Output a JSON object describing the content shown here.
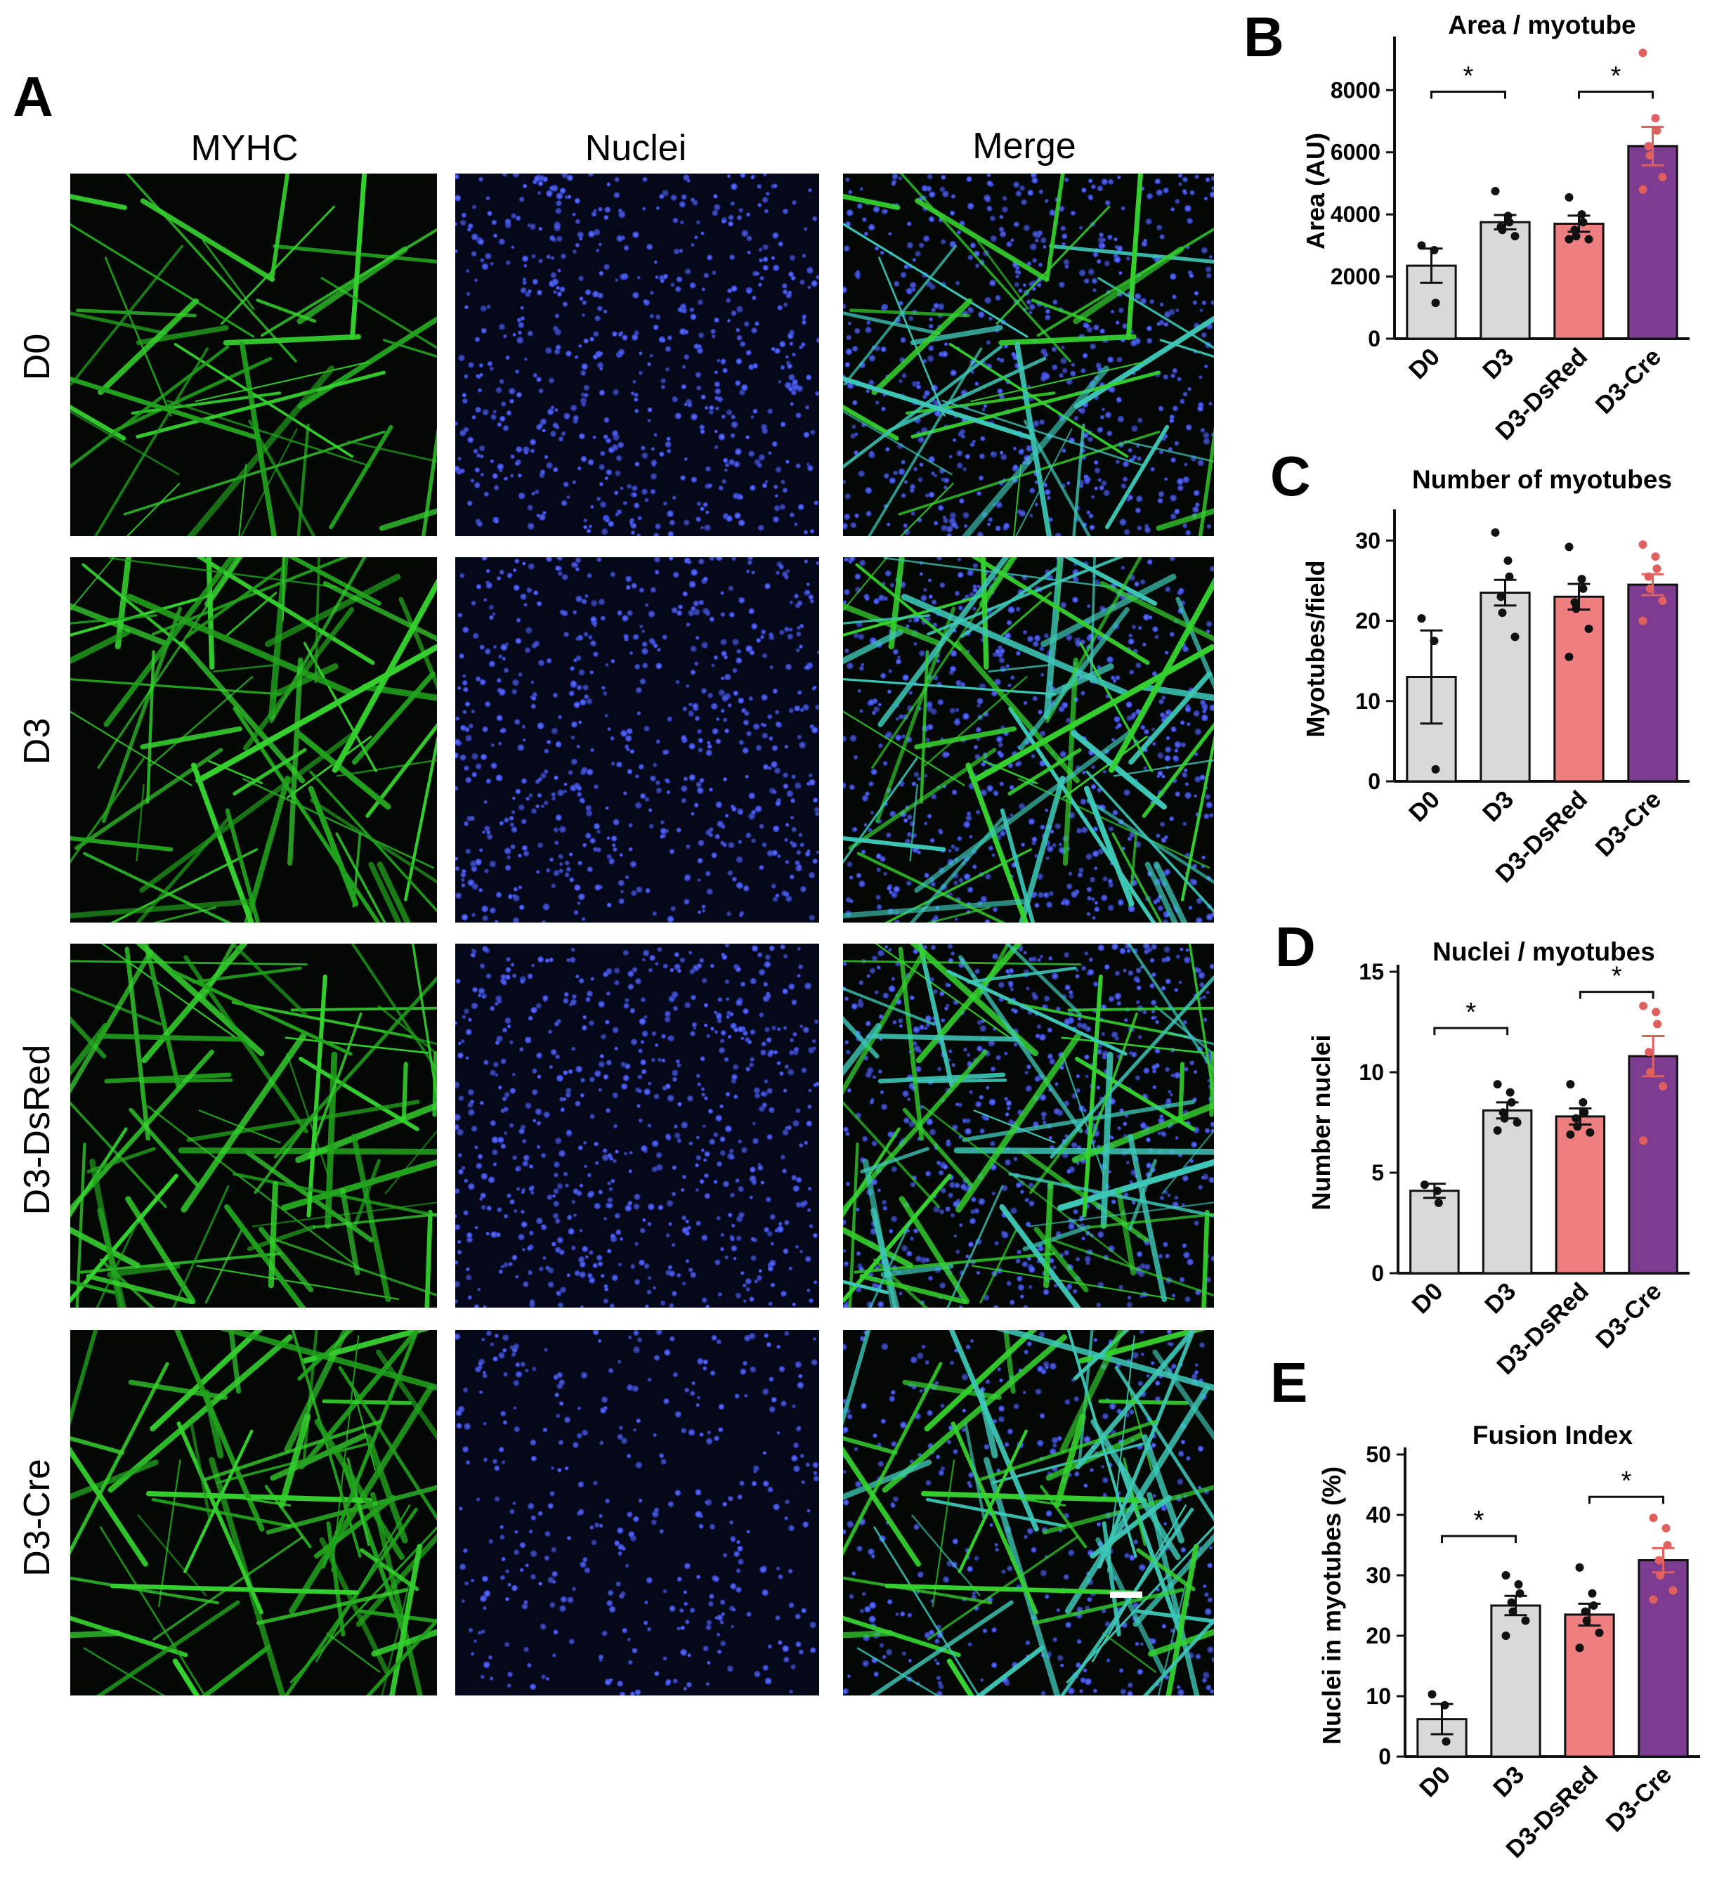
{
  "panel_letters": [
    "A",
    "B",
    "C",
    "D",
    "E"
  ],
  "micrographs": {
    "columns": [
      "MYHC",
      "Nuclei",
      "Merge"
    ],
    "rows": [
      "D0",
      "D3",
      "D3-DsRed",
      "D3-Cre"
    ]
  },
  "colors": {
    "D0": "#d9d9d9",
    "D3": "#d9d9d9",
    "D3-DsRed": "#ef7e80",
    "D3-Cre": "#7d3c8f",
    "point_default": "#111111",
    "point_cre": "#e0605f",
    "myhc_stain": "#35d22f",
    "nuclei_stain": "#3a50e0",
    "merge_tint": "#3ec8b8"
  },
  "chart_data": [
    {
      "panel": "B",
      "type": "bar",
      "title": "Area / myotube",
      "ylabel": "Area (AU)",
      "categories": [
        "D0",
        "D3",
        "D3-DsRed",
        "D3-Cre"
      ],
      "values": [
        2350,
        3750,
        3700,
        6200
      ],
      "errors": [
        550,
        230,
        260,
        620
      ],
      "ylim": [
        0,
        9500
      ],
      "yticks": [
        0,
        2000,
        4000,
        6000,
        8000
      ],
      "points": [
        [
          3000,
          2850,
          1150
        ],
        [
          4750,
          3950,
          3750,
          3600,
          3500,
          3300
        ],
        [
          4550,
          4000,
          3750,
          3500,
          3300,
          3200,
          3200
        ],
        [
          9200,
          7100,
          6700,
          6200,
          5900,
          5200,
          4800
        ]
      ],
      "significance": [
        {
          "from": 0,
          "to": 1,
          "label": "*"
        },
        {
          "from": 2,
          "to": 3,
          "label": "*"
        }
      ]
    },
    {
      "panel": "C",
      "type": "bar",
      "title": "Number of myotubes",
      "ylabel": "Myotubes/field",
      "categories": [
        "D0",
        "D3",
        "D3-DsRed",
        "D3-Cre"
      ],
      "values": [
        13,
        23.5,
        23,
        24.5
      ],
      "errors": [
        5.8,
        1.6,
        1.6,
        1.3
      ],
      "ylim": [
        0,
        33
      ],
      "yticks": [
        0,
        10,
        20,
        30
      ],
      "points": [
        [
          20.3,
          17.5,
          1.5
        ],
        [
          31,
          27.5,
          25.5,
          23,
          21,
          18
        ],
        [
          29.2,
          25.2,
          24,
          22.3,
          21.5,
          19,
          15.5
        ],
        [
          29.5,
          28,
          26.5,
          25.5,
          24,
          22.5,
          20
        ]
      ],
      "significance": []
    },
    {
      "panel": "D",
      "type": "bar",
      "title": "Nuclei / myotubes",
      "ylabel": "Number nuclei",
      "categories": [
        "D0",
        "D3",
        "D3-DsRed",
        "D3-Cre"
      ],
      "values": [
        4.1,
        8.1,
        7.8,
        10.8
      ],
      "errors": [
        0.35,
        0.4,
        0.4,
        1.0
      ],
      "ylim": [
        0,
        15
      ],
      "yticks": [
        0,
        5,
        10,
        15
      ],
      "points": [
        [
          4.4,
          4.1,
          3.5
        ],
        [
          9.4,
          9.0,
          8.5,
          8.0,
          7.7,
          7.5,
          7.1
        ],
        [
          9.4,
          8.5,
          8.0,
          7.7,
          7.3,
          7.0,
          6.9
        ],
        [
          13.3,
          13.0,
          12.4,
          11.0,
          10.0,
          9.3,
          6.6
        ]
      ],
      "significance": [
        {
          "from": 0,
          "to": 1,
          "label": "*"
        },
        {
          "from": 2,
          "to": 3,
          "label": "*"
        }
      ]
    },
    {
      "panel": "E",
      "type": "bar",
      "title": "Fusion Index",
      "ylabel": "Nuclei in myotubes (%)",
      "categories": [
        "D0",
        "D3",
        "D3-DsRed",
        "D3-Cre"
      ],
      "values": [
        6.2,
        25.0,
        23.5,
        32.5
      ],
      "errors": [
        2.5,
        1.6,
        1.8,
        2.0
      ],
      "ylim": [
        0,
        50
      ],
      "yticks": [
        0,
        10,
        20,
        30,
        40,
        50
      ],
      "points": [
        [
          10.3,
          8.5,
          2.5
        ],
        [
          30,
          28.5,
          27,
          25.5,
          24,
          22.5,
          20
        ],
        [
          31.3,
          27,
          25,
          24,
          22.5,
          20.5,
          18
        ],
        [
          39.5,
          37.8,
          35,
          32.5,
          30,
          27.5,
          26
        ]
      ],
      "significance": [
        {
          "from": 0,
          "to": 1,
          "label": "*"
        },
        {
          "from": 2,
          "to": 3,
          "label": "*"
        }
      ]
    }
  ]
}
